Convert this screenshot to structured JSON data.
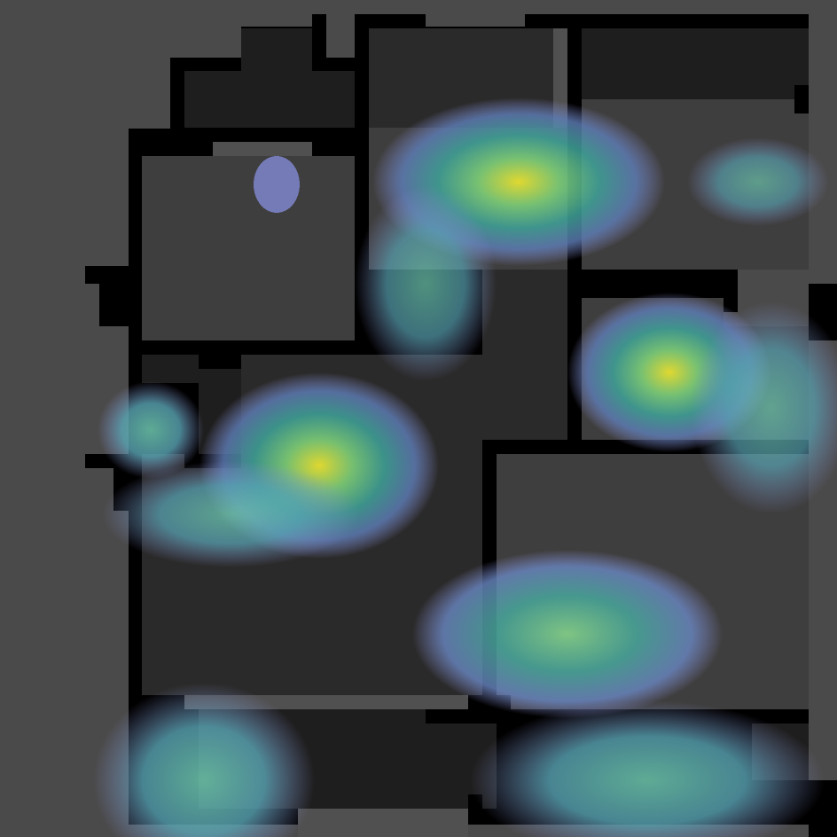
{
  "map": {
    "kind": "floor-plan-occupancy-heatmap",
    "colors": {
      "background": "#4a4a4a",
      "wall": "#000000",
      "room_light": "#3e3e3e",
      "room_dark": "#1e1e1e",
      "room_mid": "#2a2a2a",
      "corridor": "#505050",
      "heat_low": "#7b7fbf",
      "heat_mid": "#3d9e96",
      "heat_high": "#cfd640"
    },
    "legend": {
      "shown": false,
      "colormap": "viridis"
    }
  }
}
